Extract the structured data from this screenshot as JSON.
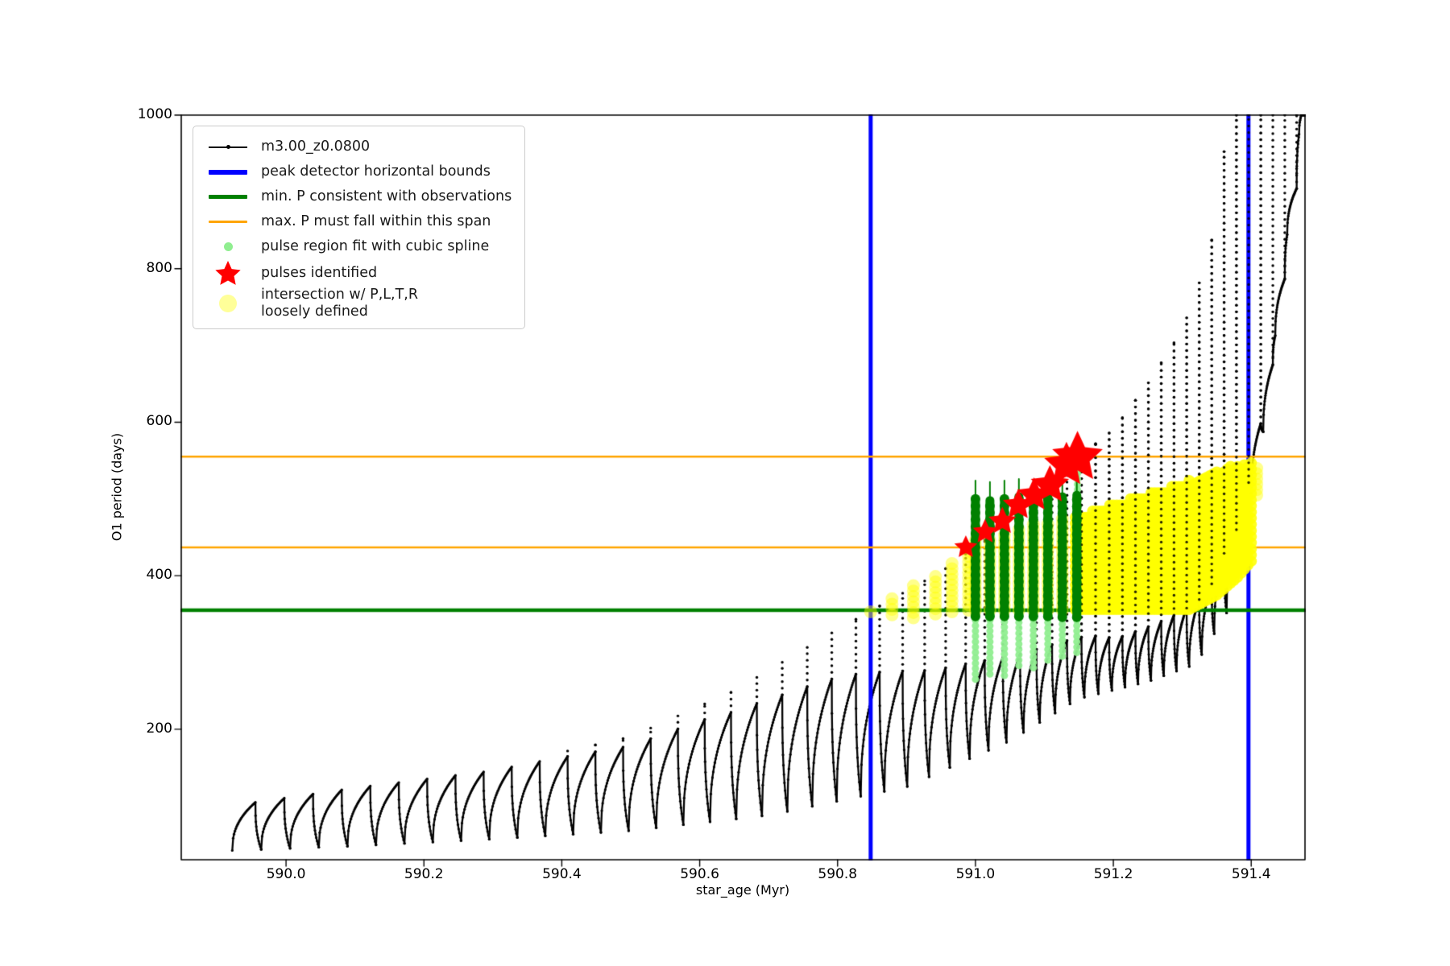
{
  "chart_data": {
    "type": "line",
    "title": "",
    "xlabel": "star_age (Myr)",
    "ylabel": "O1 period (days)",
    "xlim": [
      589.848,
      591.478
    ],
    "ylim": [
      30,
      1000
    ],
    "xticks": {
      "values": [
        590.0,
        590.2,
        590.4,
        590.6,
        590.8,
        591.0,
        591.2,
        591.4
      ],
      "labels": [
        "590.0",
        "590.2",
        "590.4",
        "590.6",
        "590.8",
        "591.0",
        "591.2",
        "591.4"
      ]
    },
    "yticks": {
      "values": [
        200,
        400,
        600,
        800,
        1000
      ],
      "labels": [
        "200",
        "400",
        "600",
        "800",
        "1000"
      ]
    },
    "grid": false,
    "legend_position": "upper left",
    "legend": [
      {
        "label": "m3.00_z0.0800",
        "marker": "line-dot",
        "color": "#000000"
      },
      {
        "label": "peak detector horizontal bounds",
        "marker": "thick-line",
        "color": "#0000ff"
      },
      {
        "label": "min. P consistent with observations",
        "marker": "thick-line",
        "color": "#008000"
      },
      {
        "label": "max. P must fall within this span",
        "marker": "thin-line",
        "color": "#ffa500"
      },
      {
        "label": "pulse region fit with cubic spline",
        "marker": "small-dot",
        "color": "#90ee90"
      },
      {
        "label": "pulses identified",
        "marker": "star",
        "color": "#ff0000"
      },
      {
        "label": "intersection w/ P,L,T,R\nloosely defined",
        "marker": "big-dot",
        "color": "rgba(255,255,0,0.4)"
      }
    ],
    "ref_lines": {
      "peak_detector_vlines_x": [
        590.848,
        591.396
      ],
      "min_P_hline_y": 355,
      "max_P_span_hlines_y": [
        437,
        555
      ]
    },
    "colors": {
      "track": "#000000",
      "bounds": "#0000ff",
      "min_P": "#008000",
      "max_P_span": "#ffa500",
      "spline_fit": "#90ee90",
      "pulses": "#ff0000",
      "intersection": "#ffff00",
      "dark_green_columns": "#008000"
    },
    "track_pulses": {
      "comment": "thermal-pulse sawtooth track; envelopes are piecewise-linear keypoints [star_age, value]",
      "t_start": 589.922,
      "t_end": 591.47,
      "interval_keys": [
        [
          589.92,
          0.042
        ],
        [
          590.5,
          0.04
        ],
        [
          590.85,
          0.034
        ],
        [
          591.0,
          0.027
        ],
        [
          591.1,
          0.022
        ],
        [
          591.2,
          0.019
        ],
        [
          591.48,
          0.017
        ]
      ],
      "base_keys": [
        [
          589.92,
          42
        ],
        [
          590.1,
          48
        ],
        [
          590.3,
          57
        ],
        [
          590.5,
          68
        ],
        [
          590.7,
          88
        ],
        [
          590.9,
          125
        ],
        [
          591.05,
          185
        ],
        [
          591.15,
          240
        ],
        [
          591.25,
          262
        ],
        [
          591.32,
          285
        ],
        [
          591.37,
          360
        ],
        [
          591.42,
          600
        ],
        [
          591.47,
          980
        ]
      ],
      "peak_keys": [
        [
          589.92,
          100
        ],
        [
          590.1,
          125
        ],
        [
          590.3,
          150
        ],
        [
          590.5,
          190
        ],
        [
          590.65,
          250
        ],
        [
          590.8,
          330
        ],
        [
          590.87,
          365
        ],
        [
          590.95,
          405
        ],
        [
          591.05,
          470
        ],
        [
          591.15,
          555
        ],
        [
          591.2,
          590
        ],
        [
          591.25,
          650
        ],
        [
          591.3,
          720
        ],
        [
          591.34,
          820
        ],
        [
          591.365,
          980
        ],
        [
          591.48,
          1300
        ]
      ],
      "hump_frac_keys": [
        [
          589.92,
          1.0
        ],
        [
          590.35,
          0.95
        ],
        [
          590.6,
          0.87
        ],
        [
          590.8,
          0.72
        ],
        [
          590.95,
          0.52
        ],
        [
          591.1,
          0.33
        ],
        [
          591.2,
          0.2
        ],
        [
          591.48,
          0.14
        ]
      ]
    },
    "intersection_columns": [
      {
        "t": 590.848,
        "lo": 353,
        "hi": 357
      },
      {
        "t": 590.879,
        "lo": 349,
        "hi": 372
      },
      {
        "t": 590.91,
        "lo": 345,
        "hi": 388
      },
      {
        "t": 590.942,
        "lo": 350,
        "hi": 404
      },
      {
        "t": 590.966,
        "lo": 353,
        "hi": 420
      },
      {
        "t": 590.99,
        "lo": 355,
        "hi": 434
      },
      {
        "t": 591.0,
        "lo": 355,
        "hi": 446
      },
      {
        "t": 591.021,
        "lo": 355,
        "hi": 452
      },
      {
        "t": 591.042,
        "lo": 355,
        "hi": 458
      },
      {
        "t": 591.063,
        "lo": 355,
        "hi": 464
      },
      {
        "t": 591.084,
        "lo": 355,
        "hi": 468
      },
      {
        "t": 591.105,
        "lo": 355,
        "hi": 472
      },
      {
        "t": 591.126,
        "lo": 355,
        "hi": 474
      },
      {
        "t": 591.147,
        "lo": 355,
        "hi": 476
      },
      {
        "t": 591.408,
        "lo": 505,
        "hi": 545
      }
    ],
    "intersection_mass": {
      "t_range": [
        591.145,
        591.403
      ],
      "top_keys": [
        [
          591.145,
          478
        ],
        [
          591.2,
          494
        ],
        [
          591.25,
          508
        ],
        [
          591.3,
          521
        ],
        [
          591.35,
          537
        ],
        [
          591.38,
          546
        ],
        [
          591.403,
          551
        ]
      ],
      "bottom_keys": [
        [
          591.145,
          356
        ],
        [
          591.31,
          356
        ],
        [
          591.35,
          375
        ],
        [
          591.38,
          398
        ],
        [
          591.403,
          422
        ]
      ]
    },
    "spline_fit_columns": [
      {
        "t": 591.0,
        "lo": 265,
        "hi": 347
      },
      {
        "t": 591.021,
        "lo": 272,
        "hi": 347
      },
      {
        "t": 591.042,
        "lo": 270,
        "hi": 347
      },
      {
        "t": 591.063,
        "lo": 283,
        "hi": 347
      },
      {
        "t": 591.084,
        "lo": 280,
        "hi": 347
      },
      {
        "t": 591.105,
        "lo": 290,
        "hi": 346
      },
      {
        "t": 591.126,
        "lo": 295,
        "hi": 345
      },
      {
        "t": 591.147,
        "lo": 300,
        "hi": 345
      },
      {
        "t": 591.148,
        "lo": 512,
        "hi": 546
      }
    ],
    "pulse_region_columns": [
      {
        "t": 591.0,
        "lo": 347,
        "hi": 500,
        "whisker": 524
      },
      {
        "t": 591.021,
        "lo": 347,
        "hi": 498,
        "whisker": 522
      },
      {
        "t": 591.042,
        "lo": 347,
        "hi": 500,
        "whisker": 524
      },
      {
        "t": 591.063,
        "lo": 347,
        "hi": 503,
        "whisker": 526
      },
      {
        "t": 591.084,
        "lo": 347,
        "hi": 502,
        "whisker": 525
      },
      {
        "t": 591.105,
        "lo": 347,
        "hi": 502,
        "whisker": 526
      },
      {
        "t": 591.126,
        "lo": 346,
        "hi": 503,
        "whisker": 527
      },
      {
        "t": 591.147,
        "lo": 346,
        "hi": 505,
        "whisker": 528
      }
    ],
    "pulses_identified": [
      {
        "t": 590.986,
        "P": 437,
        "size": 15
      },
      {
        "t": 591.014,
        "P": 457,
        "size": 16
      },
      {
        "t": 591.039,
        "P": 471,
        "size": 18
      },
      {
        "t": 591.062,
        "P": 492,
        "size": 20
      },
      {
        "t": 591.085,
        "P": 505,
        "size": 22
      },
      {
        "t": 591.108,
        "P": 518,
        "size": 25
      },
      {
        "t": 591.132,
        "P": 544,
        "size": 29
      },
      {
        "t": 591.148,
        "P": 554,
        "size": 33
      }
    ]
  }
}
